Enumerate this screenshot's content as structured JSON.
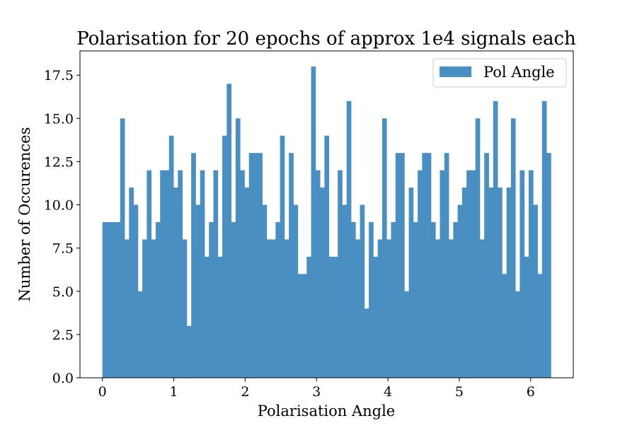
{
  "chart_data": {
    "type": "bar",
    "title": "Polarisation for 20 epochs of approx 1e4 signals each",
    "xlabel": "Polarisation Angle",
    "ylabel": "Number of Occurences",
    "xlim": [
      -0.314,
      6.597
    ],
    "ylim": [
      0,
      18.9
    ],
    "bin_range": [
      0,
      6.283
    ],
    "xticks": [
      0,
      1,
      2,
      3,
      4,
      5,
      6
    ],
    "xtick_labels": [
      "0",
      "1",
      "2",
      "3",
      "4",
      "5",
      "6"
    ],
    "yticks": [
      0,
      2.5,
      5,
      7.5,
      10,
      12.5,
      15,
      17.5
    ],
    "ytick_labels": [
      "0.0",
      "2.5",
      "5.0",
      "7.5",
      "10.0",
      "12.5",
      "15.0",
      "17.5"
    ],
    "grid": false,
    "legend_position": "top-right",
    "series": [
      {
        "name": "Pol Angle",
        "color": "#4a8fc2",
        "values": [
          9,
          9,
          9,
          9,
          15,
          8,
          11,
          10,
          5,
          8,
          12,
          8,
          9,
          12,
          12,
          14,
          11,
          12,
          8,
          3,
          13,
          10,
          12,
          7,
          9,
          12,
          7,
          14,
          17,
          9,
          15,
          12,
          11,
          13,
          13,
          13,
          10,
          8,
          8,
          9,
          14,
          8,
          13,
          10,
          6,
          6,
          7,
          18,
          12,
          11,
          14,
          7,
          7,
          12,
          10,
          16,
          9,
          8,
          10,
          4,
          9,
          7,
          8,
          15,
          8,
          9,
          13,
          13,
          5,
          11,
          9,
          12,
          13,
          13,
          9,
          8,
          12,
          13,
          8,
          9,
          10,
          11,
          12,
          12,
          15,
          8,
          13,
          11,
          16,
          11,
          6,
          11,
          15,
          5,
          12,
          7,
          12,
          10,
          6,
          16,
          13
        ]
      }
    ]
  }
}
